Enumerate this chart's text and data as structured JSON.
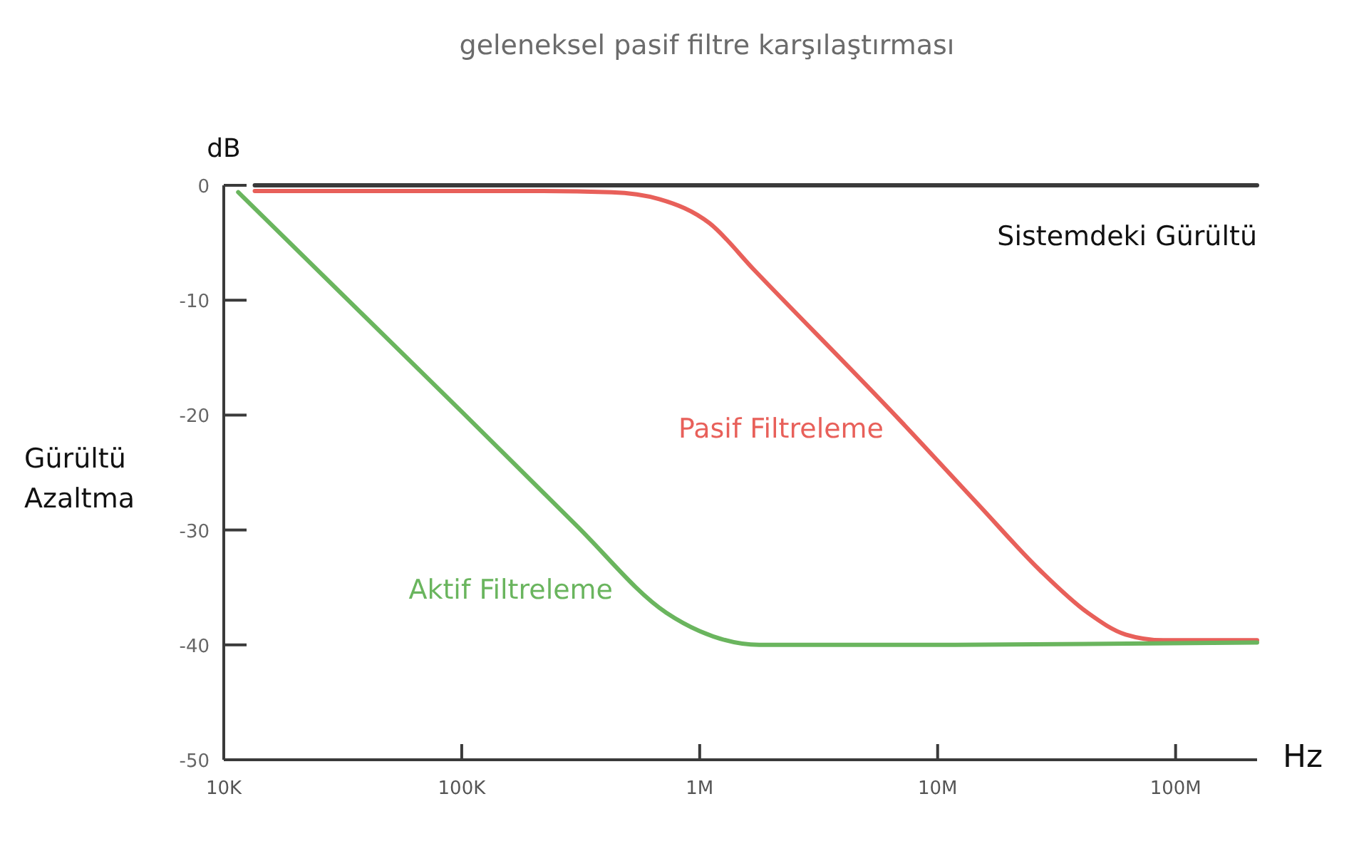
{
  "chart_data": {
    "type": "line",
    "title": "geleneksel pasif filtre karşılaştırması",
    "xlabel": "Hz",
    "ylabel": "Gürültü Azaltma",
    "annotations": [
      "dB"
    ],
    "log": "x",
    "grid": false,
    "legend": false,
    "marker": "none",
    "line_style": "solid",
    "xlim": [
      10000,
      220000000
    ],
    "xticks": [
      {
        "value": 10000,
        "label": "10K"
      },
      {
        "value": 100000,
        "label": "100K"
      },
      {
        "value": 1000000,
        "label": "1M"
      },
      {
        "value": 10000000,
        "label": "10M"
      },
      {
        "value": 100000000,
        "label": "100M"
      }
    ],
    "ylim": [
      -50,
      0
    ],
    "yticks": [
      0,
      -10,
      -20,
      -30,
      -40,
      -50
    ],
    "series": [
      {
        "name": "Sistemdeki Gürültü",
        "color": "#3a3a3a",
        "x": [
          13500,
          220000000
        ],
        "values": [
          0,
          0
        ]
      },
      {
        "name": "Pasif Filtreleme",
        "color": "#e8605a",
        "x": [
          13500,
          200000,
          427000,
          676000,
          1100000,
          1700000,
          6760000,
          15000000,
          26900000,
          42700000,
          61700000,
          89100000,
          220000000
        ],
        "values": [
          -0.5,
          -0.5,
          -0.6,
          -1.2,
          -3.3,
          -7.4,
          -20.2,
          -27.9,
          -33.5,
          -37.2,
          -39.1,
          -39.6,
          -39.6
        ]
      },
      {
        "name": "Aktif Filtreleme",
        "color": "#6ab55e",
        "x": [
          11500,
          100000,
          300000,
          724000,
          1000000,
          1780000,
          10000000,
          220000000
        ],
        "values": [
          -0.6,
          -19.7,
          -29.5,
          -37.2,
          -38.8,
          -40,
          -40,
          -39.8
        ]
      }
    ]
  }
}
